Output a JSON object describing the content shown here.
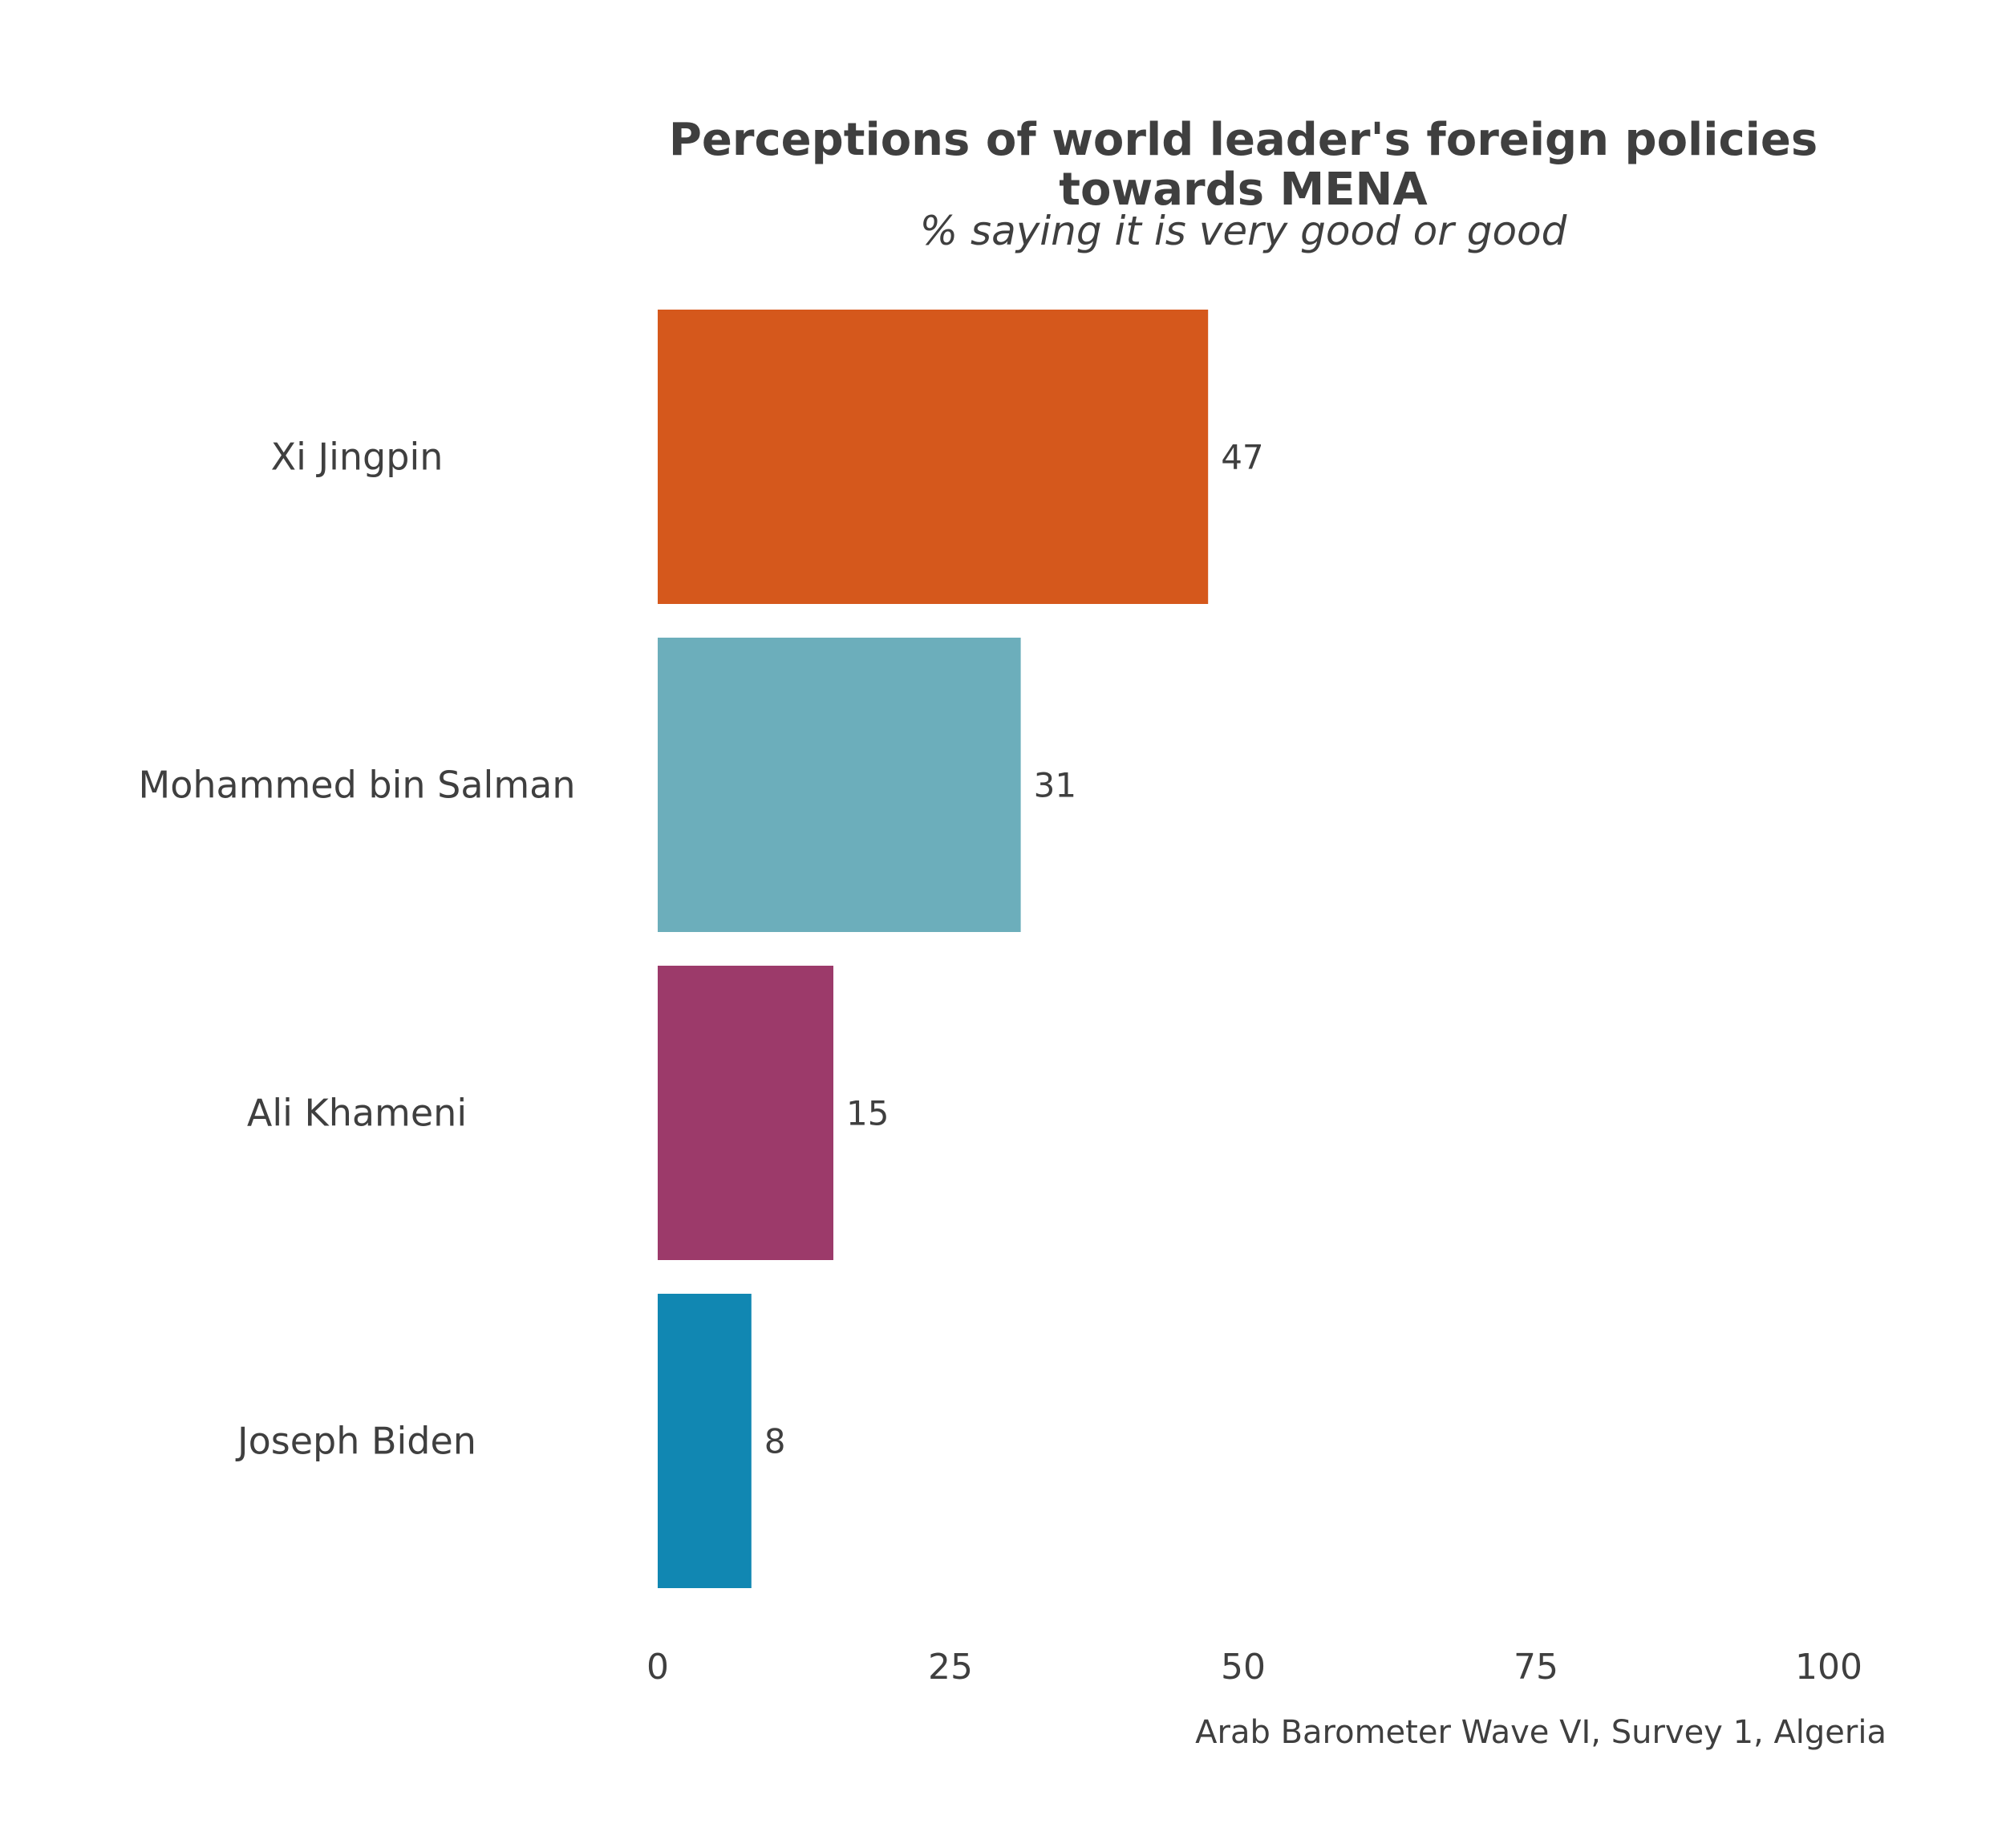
{
  "chart_data": {
    "type": "bar",
    "orientation": "horizontal",
    "title": "Perceptions of world leader's foreign policies towards MENA",
    "title_lines": [
      "Perceptions of world leader's foreign policies",
      "towards MENA"
    ],
    "subtitle": "% saying it is very good or good",
    "caption": "Arab Barometer Wave VI, Survey 1, Algeria",
    "categories": [
      "Xi Jingpin",
      "Mohammed bin Salman",
      "Ali Khameni",
      "Joseph Biden"
    ],
    "values": [
      47,
      31,
      15,
      8
    ],
    "colors": [
      "#D5581C",
      "#6CAEBB",
      "#9C3A6A",
      "#1187B2"
    ],
    "xlim": [
      0,
      100
    ],
    "xticks": [
      0,
      25,
      50,
      75,
      100
    ],
    "xtick_labels": [
      "0",
      "25",
      "50",
      "75",
      "100"
    ],
    "grid": false,
    "legend": "none"
  }
}
